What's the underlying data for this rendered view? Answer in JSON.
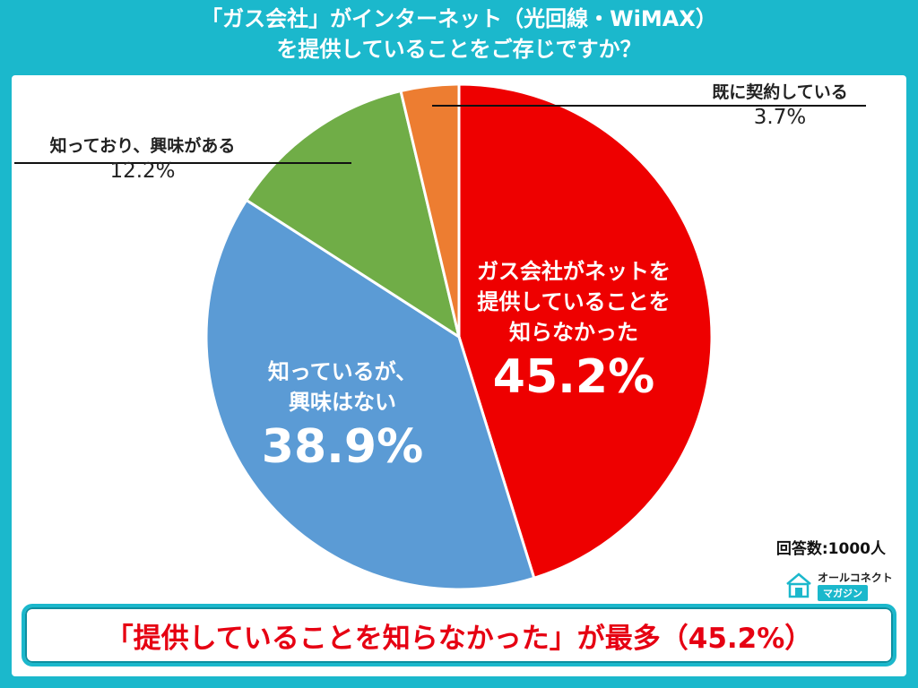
{
  "title_line1": "「ガス会社」がインターネット（光回線・WiMAX）",
  "title_line2": "を提供していることをご存じですか？",
  "respondents": "回答数:1000人",
  "logo": {
    "top": "オールコネクト",
    "bottom": "マガジン"
  },
  "banner": "「提供していることを知らなかった」が最多（45.2%）",
  "chart_data": {
    "type": "pie",
    "start": "top",
    "direction": "clockwise",
    "slices": [
      {
        "label_lines": [
          "ガス会社がネットを",
          "提供していることを",
          "知らなかった"
        ],
        "value": 45.2,
        "display": "45.2%",
        "color": "#ee0000"
      },
      {
        "label_lines": [
          "知っているが、",
          "興味はない"
        ],
        "value": 38.9,
        "display": "38.9%",
        "color": "#5b9bd5"
      },
      {
        "label_lines": [
          "知っており、興味がある"
        ],
        "value": 12.2,
        "display": "12.2%",
        "color": "#70ad47"
      },
      {
        "label_lines": [
          "既に契約している"
        ],
        "value": 3.7,
        "display": "3.7%",
        "color": "#ed7d31"
      }
    ]
  }
}
